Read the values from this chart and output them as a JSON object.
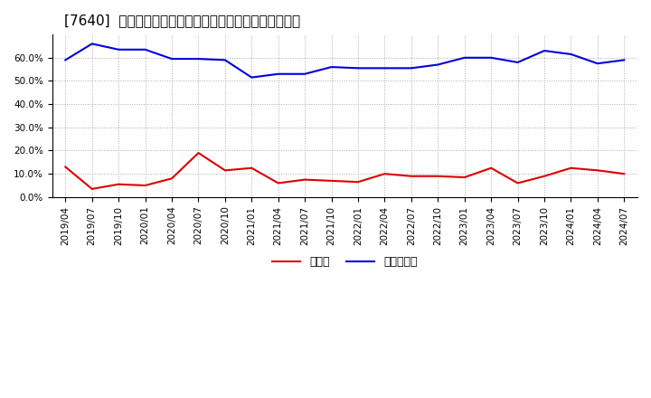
{
  "title": "[7640]  現頲金、有利子負債の総資産に対する比率の推移",
  "x_labels": [
    "2019/04",
    "2019/07",
    "2019/10",
    "2020/01",
    "2020/04",
    "2020/07",
    "2020/10",
    "2021/01",
    "2021/04",
    "2021/07",
    "2021/10",
    "2022/01",
    "2022/04",
    "2022/07",
    "2022/10",
    "2023/01",
    "2023/04",
    "2023/07",
    "2023/10",
    "2024/01",
    "2024/04",
    "2024/07"
  ],
  "cash": [
    0.13,
    0.035,
    0.055,
    0.05,
    0.08,
    0.19,
    0.115,
    0.125,
    0.06,
    0.075,
    0.07,
    0.065,
    0.1,
    0.09,
    0.09,
    0.085,
    0.125,
    0.06,
    0.09,
    0.125,
    0.115,
    0.1
  ],
  "debt": [
    0.59,
    0.66,
    0.635,
    0.635,
    0.595,
    0.595,
    0.59,
    0.515,
    0.53,
    0.53,
    0.56,
    0.555,
    0.555,
    0.555,
    0.57,
    0.6,
    0.6,
    0.58,
    0.63,
    0.615,
    0.575,
    0.59
  ],
  "cash_color": "#dd0000",
  "debt_color": "#0000dd",
  "background_color": "#ffffff",
  "plot_bg_color": "#ffffff",
  "grid_color": "#aaaaaa",
  "legend_cash": "現頲金",
  "legend_debt": "有利子負債",
  "ylim": [
    0.0,
    0.7
  ],
  "yticks": [
    0.0,
    0.1,
    0.2,
    0.3,
    0.4,
    0.5,
    0.6
  ],
  "title_fontsize": 11,
  "legend_fontsize": 9,
  "tick_fontsize": 7.5
}
